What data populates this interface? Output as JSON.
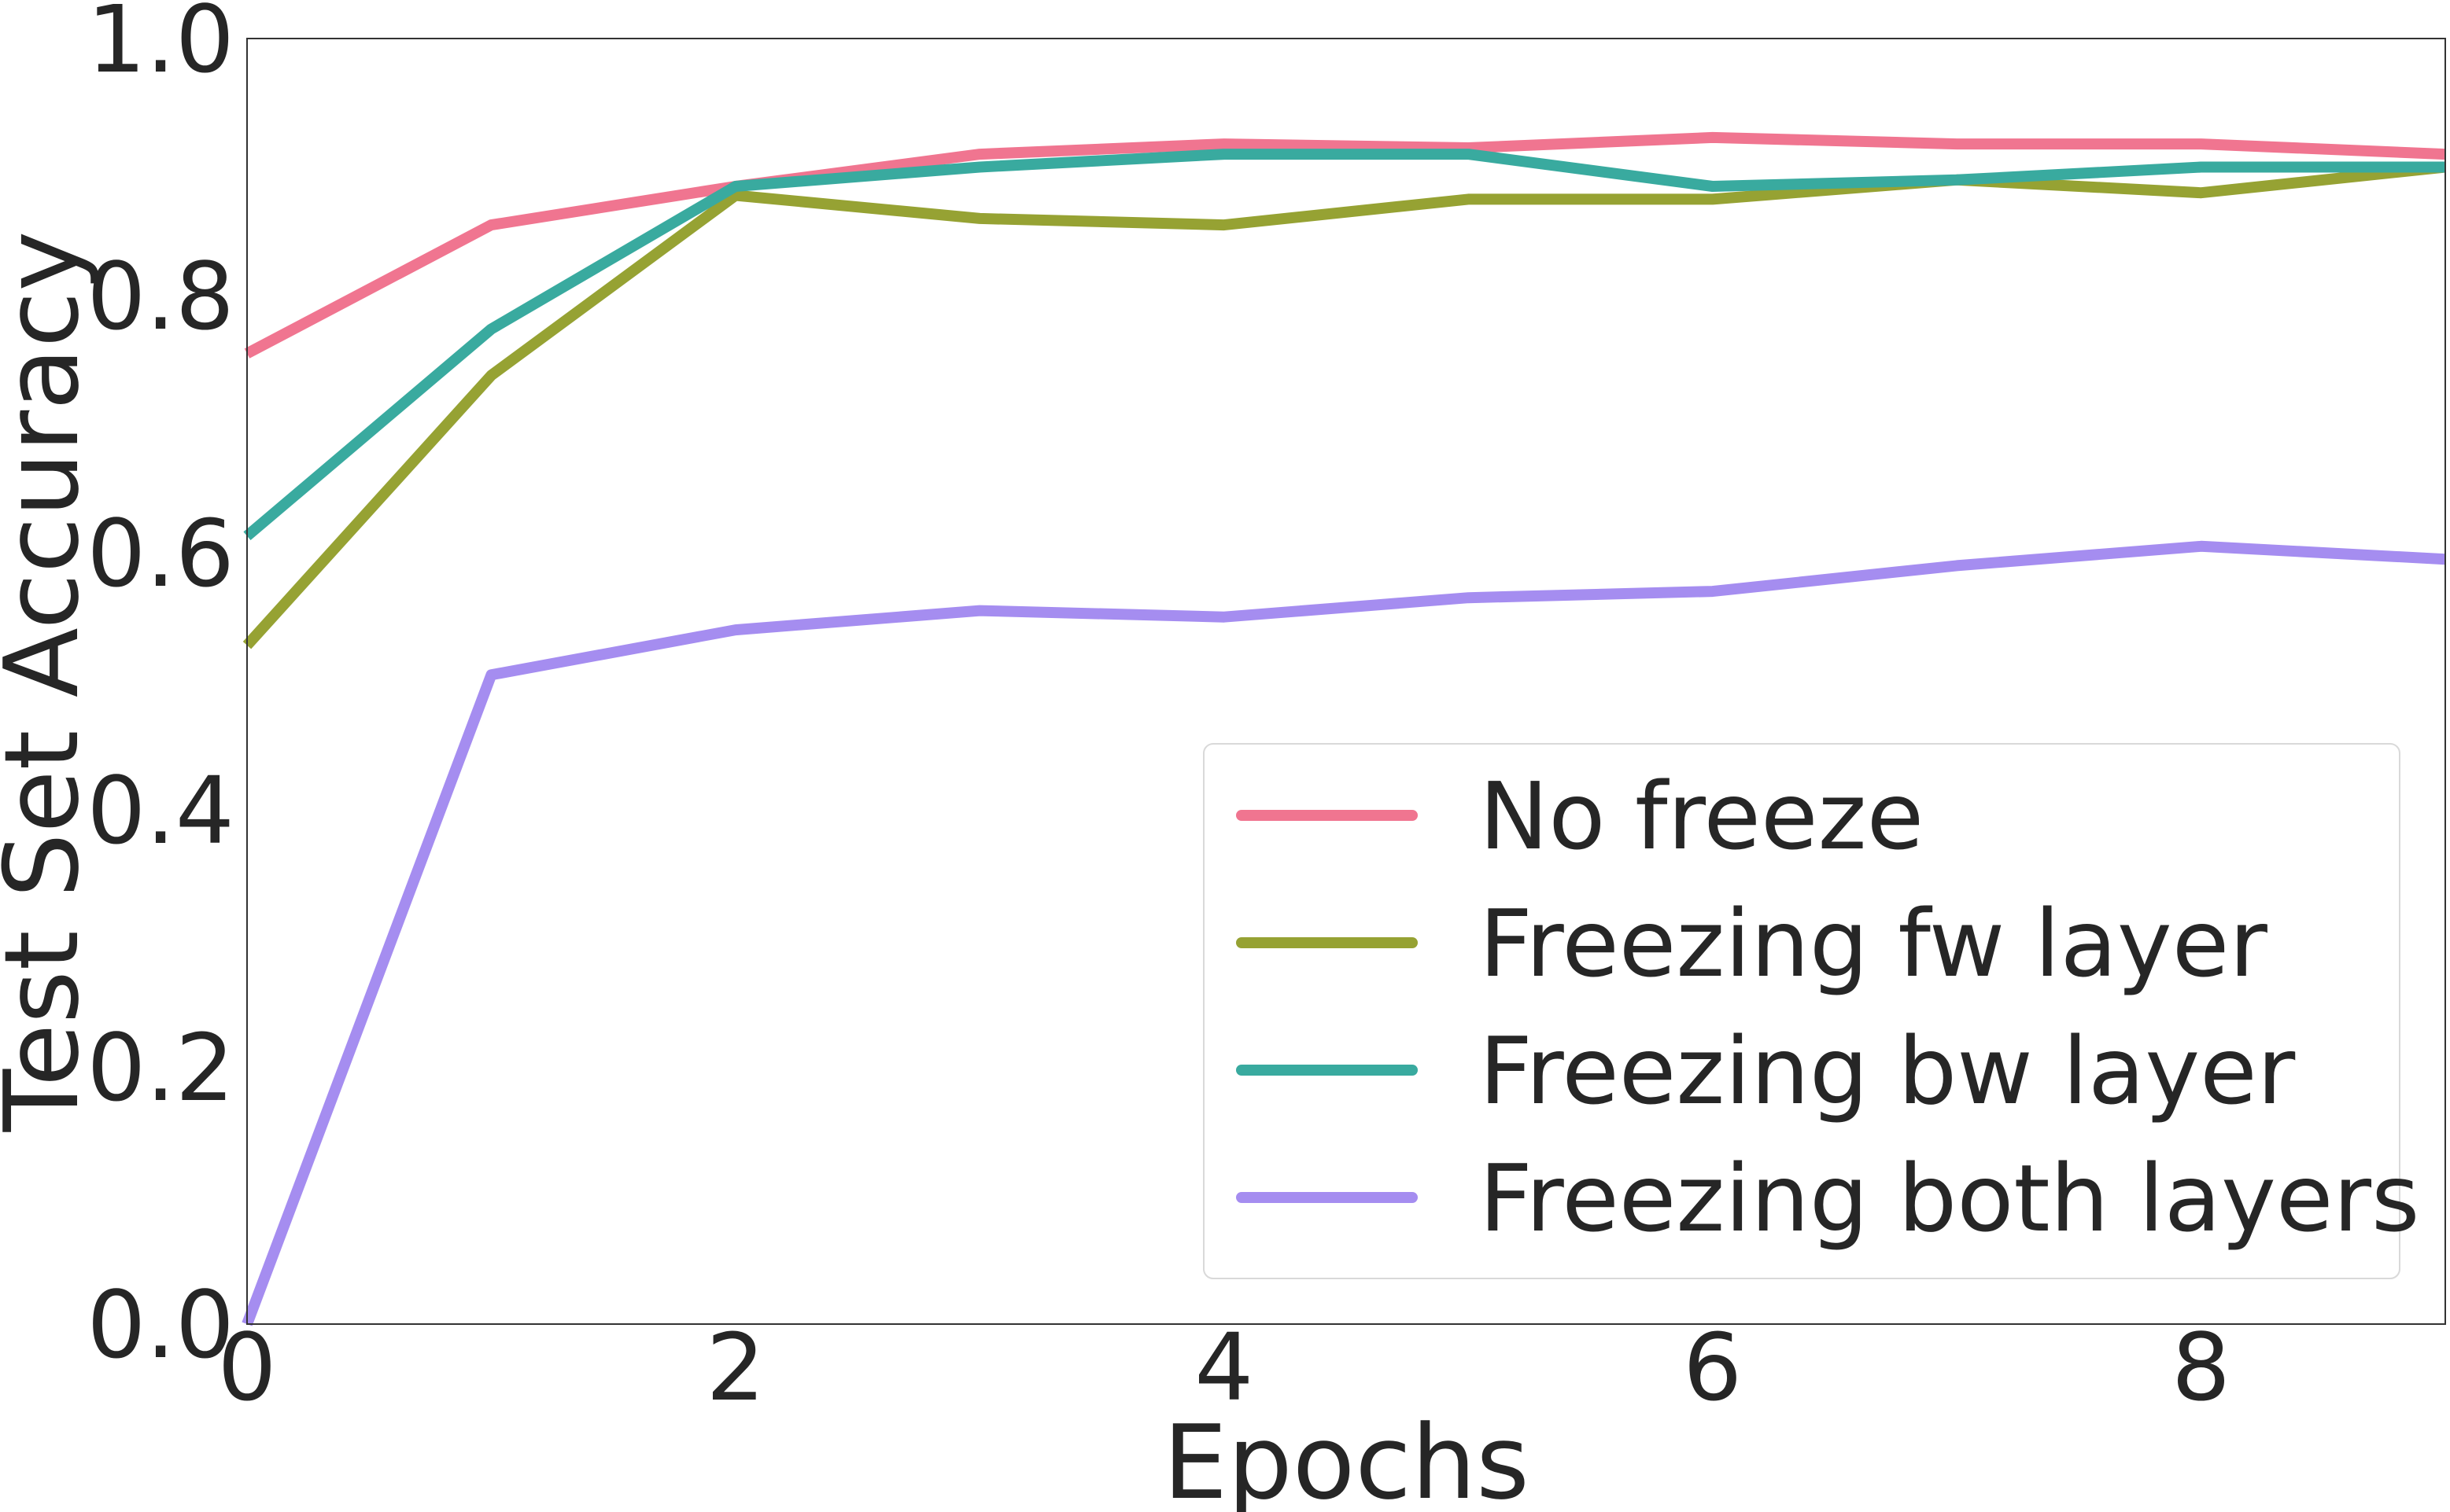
{
  "chart_data": {
    "type": "line",
    "title": "",
    "xlabel": "Epochs",
    "ylabel": "Test Set Accuracy",
    "xlim": [
      0,
      9
    ],
    "ylim": [
      0,
      1.0
    ],
    "xticks": [
      0,
      2,
      4,
      6,
      8
    ],
    "xtick_labels": [
      "0",
      "2",
      "4",
      "6",
      "8"
    ],
    "yticks": [
      0,
      0.2,
      0.4,
      0.6,
      0.8,
      1.0
    ],
    "ytick_labels": [
      "0.0",
      "0.2",
      "0.4",
      "0.6",
      "0.8",
      "1.0"
    ],
    "grid": false,
    "legend_position": "lower-right",
    "x": [
      0,
      1,
      2,
      3,
      4,
      5,
      6,
      7,
      8,
      9
    ],
    "series": [
      {
        "name": "No freeze",
        "color": "#f07590",
        "values": [
          0.755,
          0.855,
          0.885,
          0.91,
          0.918,
          0.915,
          0.923,
          0.918,
          0.918,
          0.91
        ]
      },
      {
        "name": "Freezing fw layer",
        "color": "#96a233",
        "values": [
          0.528,
          0.738,
          0.878,
          0.86,
          0.855,
          0.875,
          0.875,
          0.89,
          0.88,
          0.9
        ]
      },
      {
        "name": "Freezing bw layer",
        "color": "#39aa9f",
        "values": [
          0.613,
          0.774,
          0.885,
          0.9,
          0.91,
          0.91,
          0.885,
          0.89,
          0.9,
          0.9
        ]
      },
      {
        "name": "Freezing both layers",
        "color": "#a58df0",
        "values": [
          0.0,
          0.505,
          0.54,
          0.555,
          0.55,
          0.565,
          0.57,
          0.59,
          0.605,
          0.595
        ]
      }
    ]
  }
}
